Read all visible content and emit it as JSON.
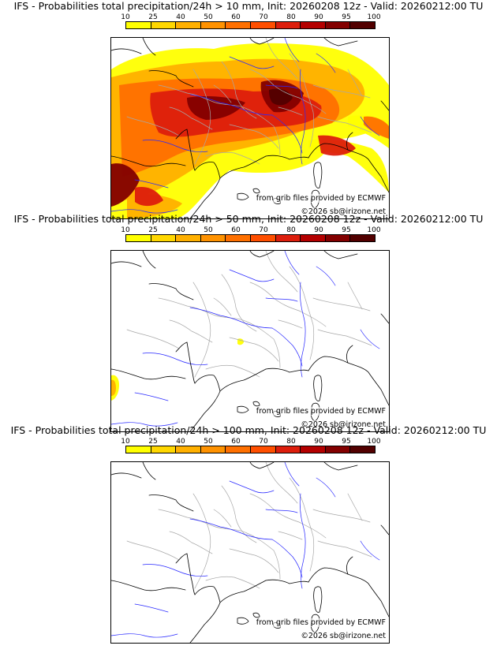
{
  "panels": [
    {
      "title": "IFS - Probabilities total precipitation/24h > 10 mm, Init: 20260208 12z - Valid: 20260212:00 TU",
      "threshold_mm": 10,
      "intensity": "high"
    },
    {
      "title": "IFS - Probabilities total precipitation/24h > 50 mm, Init: 20260208 12z - Valid: 20260212:00 TU",
      "threshold_mm": 50,
      "intensity": "low"
    },
    {
      "title": "IFS - Probabilities total precipitation/24h > 100 mm, Init: 20260208 12z - Valid: 20260212:00 TU",
      "threshold_mm": 100,
      "intensity": "none"
    }
  ],
  "colorbar": {
    "labels": [
      "10",
      "25",
      "40",
      "50",
      "60",
      "70",
      "80",
      "90",
      "95",
      "100"
    ],
    "colors": [
      "#ffff00",
      "#ffd700",
      "#ffb000",
      "#ff9200",
      "#ff7000",
      "#ff4f00",
      "#dd1e0c",
      "#b40000",
      "#830000",
      "#520000"
    ]
  },
  "credits": {
    "source": "from grib files provided by ECMWF",
    "copyright": "©2026 sb@irizone.net"
  },
  "map_colors": {
    "coast": "#000000",
    "border": "#a8a8a8",
    "river": "#2828ff"
  }
}
